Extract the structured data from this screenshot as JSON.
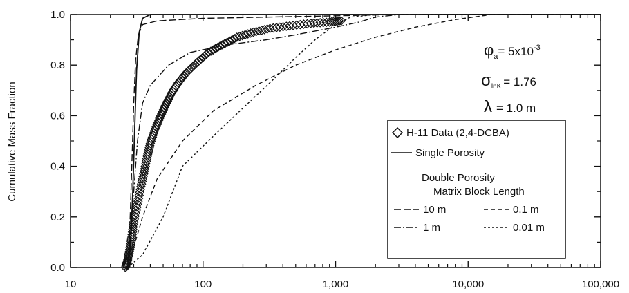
{
  "chart_data": {
    "type": "line",
    "title": "",
    "xlabel": "",
    "ylabel": "Cumulative Mass Fraction",
    "x_scale": "log",
    "xlim": [
      10,
      100000
    ],
    "ylim": [
      0,
      1
    ],
    "x_ticks": [
      10,
      100,
      1000,
      10000,
      100000
    ],
    "x_tick_labels": [
      "10",
      "100",
      "1,000",
      "10,000",
      "100,000"
    ],
    "y_ticks": [
      0,
      0.2,
      0.4,
      0.6,
      0.8,
      1.0
    ],
    "y_tick_labels": [
      "0.0",
      "0.2",
      "0.4",
      "0.6",
      "0.8",
      "1.0"
    ],
    "grid": false,
    "legend_position": "right",
    "annotations": {
      "phi_symbol": "φ",
      "phi_sub": "a",
      "phi_value": "= 5x10",
      "phi_exp": "-3",
      "sigma_symbol": "σ",
      "sigma_sub": "lnK",
      "sigma_value": "= 1.76",
      "lambda_symbol": "λ",
      "lambda_value": "= 1.0 m"
    },
    "legend": {
      "data_label": "H-11 Data (2,4-DCBA)",
      "single_label": "Single Porosity",
      "double_title_1": "Double Porosity",
      "double_title_2": "Matrix Block Length",
      "items": [
        "10 m",
        "0.1 m",
        "1 m",
        "0.01 m"
      ]
    },
    "series": [
      {
        "name": "H-11 Data (2,4-DCBA)",
        "style": "diamonds",
        "points": [
          [
            26,
            0.0
          ],
          [
            27,
            0.03
          ],
          [
            28,
            0.07
          ],
          [
            29,
            0.12
          ],
          [
            30,
            0.18
          ],
          [
            32,
            0.25
          ],
          [
            34,
            0.32
          ],
          [
            36,
            0.38
          ],
          [
            38,
            0.44
          ],
          [
            40,
            0.49
          ],
          [
            43,
            0.54
          ],
          [
            47,
            0.59
          ],
          [
            52,
            0.64
          ],
          [
            58,
            0.69
          ],
          [
            65,
            0.73
          ],
          [
            75,
            0.77
          ],
          [
            90,
            0.81
          ],
          [
            110,
            0.85
          ],
          [
            140,
            0.88
          ],
          [
            180,
            0.91
          ],
          [
            240,
            0.93
          ],
          [
            320,
            0.945
          ],
          [
            450,
            0.955
          ],
          [
            650,
            0.965
          ],
          [
            900,
            0.97
          ],
          [
            1100,
            0.975
          ]
        ]
      },
      {
        "name": "Single Porosity",
        "style": "solid",
        "points": [
          [
            27,
            0.0
          ],
          [
            28.5,
            0.1
          ],
          [
            29.5,
            0.3
          ],
          [
            30.5,
            0.55
          ],
          [
            31.5,
            0.78
          ],
          [
            33,
            0.93
          ],
          [
            35,
            0.985
          ],
          [
            40,
            1.0
          ],
          [
            100000,
            1.0
          ]
        ]
      },
      {
        "name": "10 m",
        "style": "longdash",
        "points": [
          [
            27,
            0.0
          ],
          [
            28,
            0.15
          ],
          [
            29,
            0.4
          ],
          [
            30,
            0.65
          ],
          [
            31,
            0.82
          ],
          [
            32.5,
            0.92
          ],
          [
            35,
            0.96
          ],
          [
            45,
            0.975
          ],
          [
            100,
            0.985
          ],
          [
            300,
            0.99
          ],
          [
            1000,
            0.995
          ],
          [
            3000,
            1.0
          ],
          [
            100000,
            1.0
          ]
        ]
      },
      {
        "name": "1 m",
        "style": "dashdot",
        "points": [
          [
            27,
            0.0
          ],
          [
            28,
            0.1
          ],
          [
            30,
            0.3
          ],
          [
            32,
            0.5
          ],
          [
            35,
            0.65
          ],
          [
            40,
            0.72
          ],
          [
            55,
            0.8
          ],
          [
            80,
            0.85
          ],
          [
            150,
            0.88
          ],
          [
            300,
            0.9
          ],
          [
            500,
            0.92
          ],
          [
            1000,
            0.95
          ],
          [
            1500,
            0.97
          ],
          [
            2000,
            0.99
          ],
          [
            3000,
            1.0
          ],
          [
            100000,
            1.0
          ]
        ]
      },
      {
        "name": "0.1 m",
        "style": "dash",
        "points": [
          [
            27,
            0.0
          ],
          [
            30,
            0.08
          ],
          [
            35,
            0.2
          ],
          [
            45,
            0.35
          ],
          [
            70,
            0.5
          ],
          [
            120,
            0.62
          ],
          [
            250,
            0.72
          ],
          [
            500,
            0.8
          ],
          [
            1000,
            0.86
          ],
          [
            2000,
            0.91
          ],
          [
            4000,
            0.95
          ],
          [
            8000,
            0.98
          ],
          [
            15000,
            1.0
          ],
          [
            100000,
            1.0
          ]
        ]
      },
      {
        "name": "0.01 m",
        "style": "shortdash",
        "points": [
          [
            27,
            0.0
          ],
          [
            35,
            0.05
          ],
          [
            50,
            0.2
          ],
          [
            70,
            0.4
          ],
          [
            120,
            0.52
          ],
          [
            200,
            0.63
          ],
          [
            350,
            0.75
          ],
          [
            500,
            0.83
          ],
          [
            700,
            0.9
          ],
          [
            1000,
            0.96
          ],
          [
            1300,
            0.99
          ],
          [
            2000,
            1.0
          ],
          [
            100000,
            1.0
          ]
        ]
      }
    ]
  }
}
